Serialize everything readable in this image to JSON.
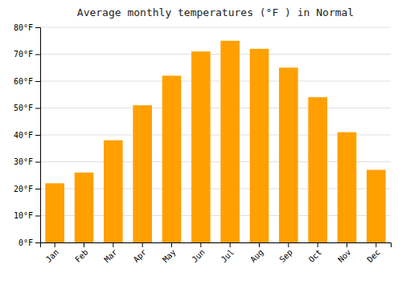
{
  "chart_data": {
    "type": "bar",
    "title": "Average monthly temperatures (°F ) in Normal",
    "categories": [
      "Jan",
      "Feb",
      "Mar",
      "Apr",
      "May",
      "Jun",
      "Jul",
      "Aug",
      "Sep",
      "Oct",
      "Nov",
      "Dec"
    ],
    "values": [
      22,
      26,
      38,
      51,
      62,
      71,
      75,
      72,
      65,
      54,
      41,
      27
    ],
    "color": "#FFA000",
    "ylim": [
      0,
      80
    ],
    "yticks": [
      {
        "value": 0,
        "label": "0°F"
      },
      {
        "value": 10,
        "label": "10°F"
      },
      {
        "value": 20,
        "label": "20°F"
      },
      {
        "value": 30,
        "label": "30°F"
      },
      {
        "value": 40,
        "label": "40°F"
      },
      {
        "value": 50,
        "label": "50°F"
      },
      {
        "value": 60,
        "label": "60°F"
      },
      {
        "value": 70,
        "label": "70°F"
      },
      {
        "value": 80,
        "label": "80°F"
      }
    ],
    "grid": true
  }
}
